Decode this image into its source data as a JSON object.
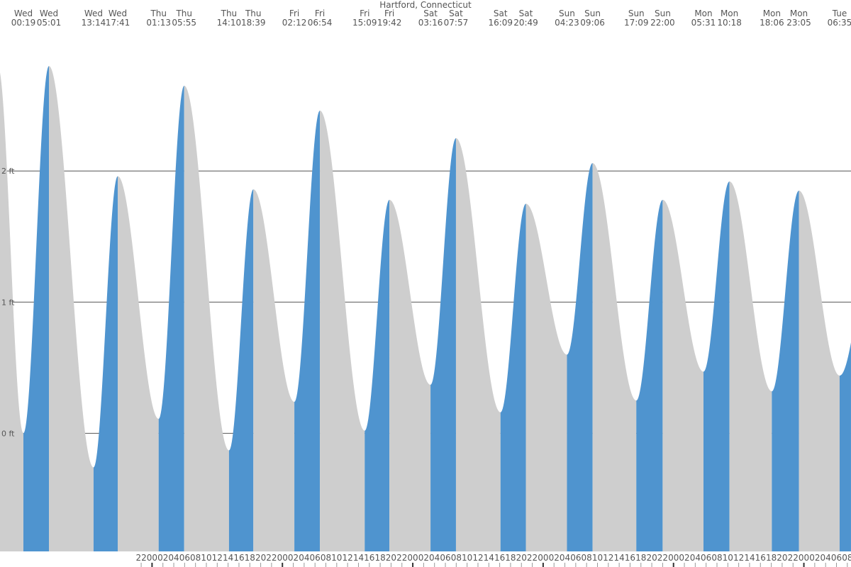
{
  "chart_data": {
    "type": "tide",
    "title": "Hartford, Connecticut",
    "days": [
      "Wed",
      "Wed",
      "Wed",
      "Wed",
      "Thu",
      "Thu",
      "Thu",
      "Thu",
      "Fri",
      "Fri",
      "Fri",
      "Fri",
      "Sat",
      "Sat",
      "Sat",
      "Sat",
      "Sun",
      "Sun",
      "Sun",
      "Sun",
      "Mon",
      "Mon",
      "Mon",
      "Mon",
      "Tue"
    ],
    "times": [
      "00:19",
      "05:01",
      "13:14",
      "17:41",
      "01:13",
      "05:55",
      "14:10",
      "18:39",
      "02:12",
      "06:54",
      "15:09",
      "19:42",
      "03:16",
      "07:57",
      "16:09",
      "20:49",
      "04:23",
      "09:06",
      "17:09",
      "22:00",
      "05:31",
      "10:18",
      "18:06",
      "23:05",
      "06:35"
    ],
    "values": [
      0.0,
      2.8,
      -0.26,
      1.96,
      0.11,
      2.65,
      -0.13,
      1.86,
      0.24,
      2.46,
      0.02,
      1.78,
      0.37,
      2.25,
      0.16,
      1.75,
      0.6,
      2.06,
      0.25,
      1.78,
      0.47,
      1.92,
      0.32,
      1.85,
      0.44
    ],
    "rise_color": "#4f94cf",
    "fall_color": "#cecece",
    "ylim": [
      -0.9,
      3.06
    ],
    "yticks": [
      {
        "value": 0,
        "label": "0 ft"
      },
      {
        "value": 1,
        "label": "1 ft"
      },
      {
        "value": 2,
        "label": "2 ft"
      }
    ],
    "grid": true,
    "xticks": [
      "22",
      "00",
      "02",
      "04",
      "06",
      "08",
      "10",
      "12",
      "14",
      "16",
      "18",
      "20",
      "22",
      "00",
      "02",
      "04",
      "06",
      "08",
      "10",
      "12",
      "14",
      "16",
      "18",
      "20",
      "22",
      "00",
      "02",
      "04",
      "06",
      "08",
      "10",
      "12",
      "14",
      "16",
      "18",
      "20",
      "22",
      "00",
      "02",
      "04",
      "06",
      "08",
      "10",
      "12",
      "14",
      "16",
      "18",
      "20",
      "22",
      "00",
      "02",
      "04",
      "06",
      "08",
      "10",
      "12",
      "14",
      "16",
      "18",
      "20",
      "22",
      "00",
      "02",
      "04",
      "06",
      "08",
      "10",
      "12",
      "14",
      "16",
      "18",
      "20",
      "22",
      "00",
      "02",
      "04",
      "06",
      "08"
    ]
  }
}
